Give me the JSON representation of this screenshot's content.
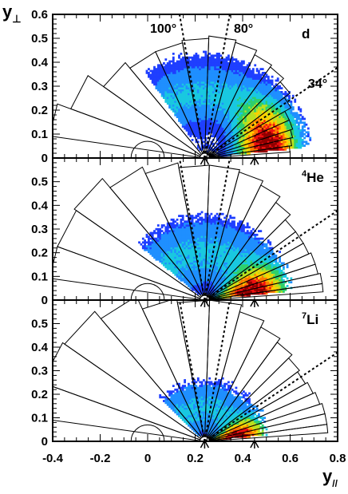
{
  "chart_data": [
    {
      "type": "heatmap",
      "panel_label": "d",
      "panel_label_sup": "",
      "xlim": [
        -0.4,
        0.8
      ],
      "ylim": [
        0,
        0.6
      ],
      "angle_lines": [
        {
          "angle_deg": 100,
          "label": "100°"
        },
        {
          "angle_deg": 80,
          "label": "80°"
        },
        {
          "angle_deg": 34,
          "label": "34°"
        }
      ],
      "arrow_markers_x": [
        0.24,
        0.45
      ],
      "detector_sectors": {
        "center_x": 0.24,
        "r_inner": 0.02,
        "sectors": [
          {
            "a0": 4,
            "a1": 8,
            "r": 0.36
          },
          {
            "a0": 8,
            "a1": 13,
            "r": 0.37
          },
          {
            "a0": 13,
            "a1": 18,
            "r": 0.38
          },
          {
            "a0": 18,
            "a1": 24,
            "r": 0.39
          },
          {
            "a0": 24,
            "a1": 30,
            "r": 0.39
          },
          {
            "a0": 30,
            "a1": 37,
            "r": 0.42
          },
          {
            "a0": 37,
            "a1": 45,
            "r": 0.45
          },
          {
            "a0": 45,
            "a1": 54,
            "r": 0.47
          },
          {
            "a0": 54,
            "a1": 64,
            "r": 0.48
          },
          {
            "a0": 64,
            "a1": 75,
            "r": 0.5
          },
          {
            "a0": 75,
            "a1": 88,
            "r": 0.51
          },
          {
            "a0": 88,
            "a1": 101,
            "r": 0.5
          },
          {
            "a0": 101,
            "a1": 115,
            "r": 0.49
          },
          {
            "a0": 115,
            "a1": 130,
            "r": 0.49
          },
          {
            "a0": 130,
            "a1": 145,
            "r": 0.52
          },
          {
            "a0": 145,
            "a1": 160,
            "r": 0.6
          },
          {
            "a0": 160,
            "a1": 172,
            "r": 0.66
          }
        ]
      },
      "density": {
        "r_center": 0.27,
        "r_sigma": 0.085,
        "r_max": 0.46,
        "angle_min": 6,
        "angle_max": 125,
        "hot_angle": 12,
        "hot_width": 30
      }
    },
    {
      "type": "heatmap",
      "panel_label": "He",
      "panel_label_sup": "4",
      "xlim": [
        -0.4,
        0.8
      ],
      "ylim": [
        0,
        0.6
      ],
      "angle_lines": [
        {
          "angle_deg": 100,
          "label": ""
        },
        {
          "angle_deg": 80,
          "label": ""
        },
        {
          "angle_deg": 34,
          "label": ""
        }
      ],
      "arrow_markers_x": [
        0.24,
        0.45
      ],
      "detector_sectors": {
        "center_x": 0.24,
        "r_inner": 0.02,
        "sectors": [
          {
            "a0": 4,
            "a1": 8,
            "r": 0.5
          },
          {
            "a0": 8,
            "a1": 13,
            "r": 0.5
          },
          {
            "a0": 13,
            "a1": 18,
            "r": 0.49
          },
          {
            "a0": 18,
            "a1": 24,
            "r": 0.49
          },
          {
            "a0": 24,
            "a1": 30,
            "r": 0.48
          },
          {
            "a0": 30,
            "a1": 37,
            "r": 0.48
          },
          {
            "a0": 37,
            "a1": 45,
            "r": 0.48
          },
          {
            "a0": 45,
            "a1": 54,
            "r": 0.51
          },
          {
            "a0": 54,
            "a1": 64,
            "r": 0.54
          },
          {
            "a0": 64,
            "a1": 75,
            "r": 0.56
          },
          {
            "a0": 75,
            "a1": 88,
            "r": 0.57
          },
          {
            "a0": 88,
            "a1": 101,
            "r": 0.57
          },
          {
            "a0": 101,
            "a1": 115,
            "r": 0.59
          },
          {
            "a0": 115,
            "a1": 130,
            "r": 0.62
          },
          {
            "a0": 130,
            "a1": 145,
            "r": 0.67
          },
          {
            "a0": 145,
            "a1": 160,
            "r": 0.66
          },
          {
            "a0": 160,
            "a1": 172,
            "r": 0.66
          }
        ]
      },
      "density": {
        "r_center": 0.2,
        "r_sigma": 0.1,
        "r_max": 0.38,
        "angle_min": 6,
        "angle_max": 140,
        "hot_angle": 10,
        "hot_width": 22
      }
    },
    {
      "type": "heatmap",
      "panel_label": "Li",
      "panel_label_sup": "7",
      "xlim": [
        -0.4,
        0.8
      ],
      "ylim": [
        0,
        0.6
      ],
      "angle_lines": [
        {
          "angle_deg": 100,
          "label": ""
        },
        {
          "angle_deg": 80,
          "label": ""
        },
        {
          "angle_deg": 34,
          "label": ""
        }
      ],
      "arrow_markers_x": [
        0.24,
        0.45
      ],
      "detector_sectors": {
        "center_x": 0.24,
        "r_inner": 0.02,
        "sectors": [
          {
            "a0": 4,
            "a1": 8,
            "r": 0.52
          },
          {
            "a0": 8,
            "a1": 13,
            "r": 0.52
          },
          {
            "a0": 13,
            "a1": 18,
            "r": 0.52
          },
          {
            "a0": 18,
            "a1": 24,
            "r": 0.51
          },
          {
            "a0": 24,
            "a1": 30,
            "r": 0.5
          },
          {
            "a0": 30,
            "a1": 37,
            "r": 0.49
          },
          {
            "a0": 37,
            "a1": 45,
            "r": 0.5
          },
          {
            "a0": 45,
            "a1": 54,
            "r": 0.52
          },
          {
            "a0": 54,
            "a1": 64,
            "r": 0.54
          },
          {
            "a0": 64,
            "a1": 75,
            "r": 0.57
          },
          {
            "a0": 75,
            "a1": 88,
            "r": 0.6
          },
          {
            "a0": 88,
            "a1": 101,
            "r": 0.6
          },
          {
            "a0": 101,
            "a1": 115,
            "r": 0.62
          },
          {
            "a0": 115,
            "a1": 130,
            "r": 0.68
          },
          {
            "a0": 130,
            "a1": 145,
            "r": 0.72
          },
          {
            "a0": 145,
            "a1": 160,
            "r": 0.73
          },
          {
            "a0": 160,
            "a1": 172,
            "r": 0.7
          }
        ]
      },
      "density": {
        "r_center": 0.14,
        "r_sigma": 0.08,
        "r_max": 0.28,
        "angle_min": 6,
        "angle_max": 135,
        "hot_angle": 10,
        "hot_width": 18
      }
    }
  ],
  "axes": {
    "xlabel": "y",
    "xlabel_sub": "//",
    "ylabel": "y",
    "ylabel_sub": "⊥",
    "x_ticks": [
      "-0.4",
      "-0.2",
      "0",
      "0.2",
      "0.4",
      "0.6",
      "0.8"
    ],
    "y_ticks_top": [
      "0",
      "0.1",
      "0.2",
      "0.3",
      "0.4",
      "0.5",
      "0.6"
    ],
    "y_ticks": [
      "0",
      "0.1",
      "0.2",
      "0.3",
      "0.4",
      "0.5"
    ]
  },
  "colormap": [
    "#1f3fff",
    "#1f8fff",
    "#19c8e0",
    "#2fd06a",
    "#b8e020",
    "#ffd000",
    "#ff7a00",
    "#ee1010",
    "#900000"
  ]
}
